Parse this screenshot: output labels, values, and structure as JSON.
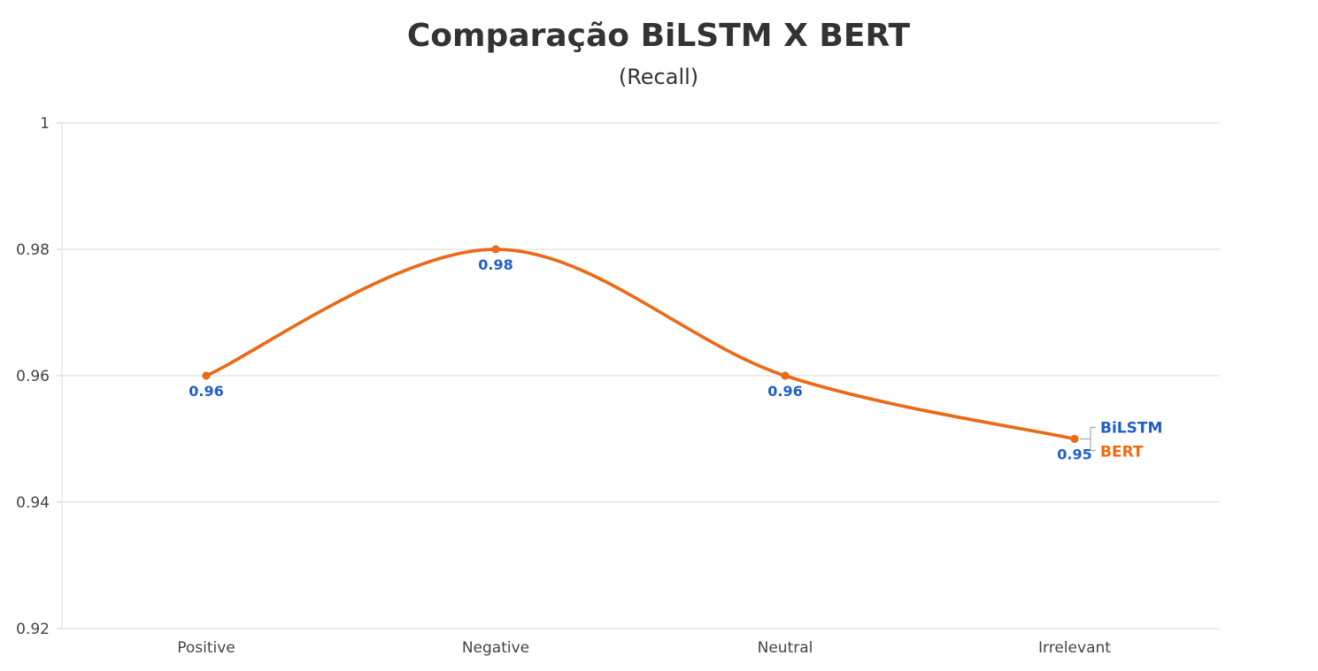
{
  "chart_data": {
    "type": "line",
    "title": "Comparação BiLSTM X BERT",
    "subtitle": "(Recall)",
    "xlabel": "",
    "ylabel": "",
    "categories": [
      "Positive",
      "Negative",
      "Neutral",
      "Irrelevant"
    ],
    "ylim": [
      0.92,
      1
    ],
    "yticks": [
      0.92,
      0.94,
      0.96,
      0.98,
      1
    ],
    "ytick_labels": [
      "0.92",
      "0.94",
      "0.96",
      "0.98",
      "1"
    ],
    "grid": "horizontal",
    "legend": "inline at line end",
    "series": [
      {
        "name": "BiLSTM",
        "values": [
          0.96,
          0.98,
          0.96,
          0.95
        ],
        "color": "#1f5fc9",
        "data_labels": [
          "0.96",
          "0.98",
          "0.96",
          "0.95"
        ]
      },
      {
        "name": "BERT",
        "values": [
          0.96,
          0.98,
          0.96,
          0.95
        ],
        "color": "#f06a0f",
        "data_labels": []
      }
    ]
  }
}
